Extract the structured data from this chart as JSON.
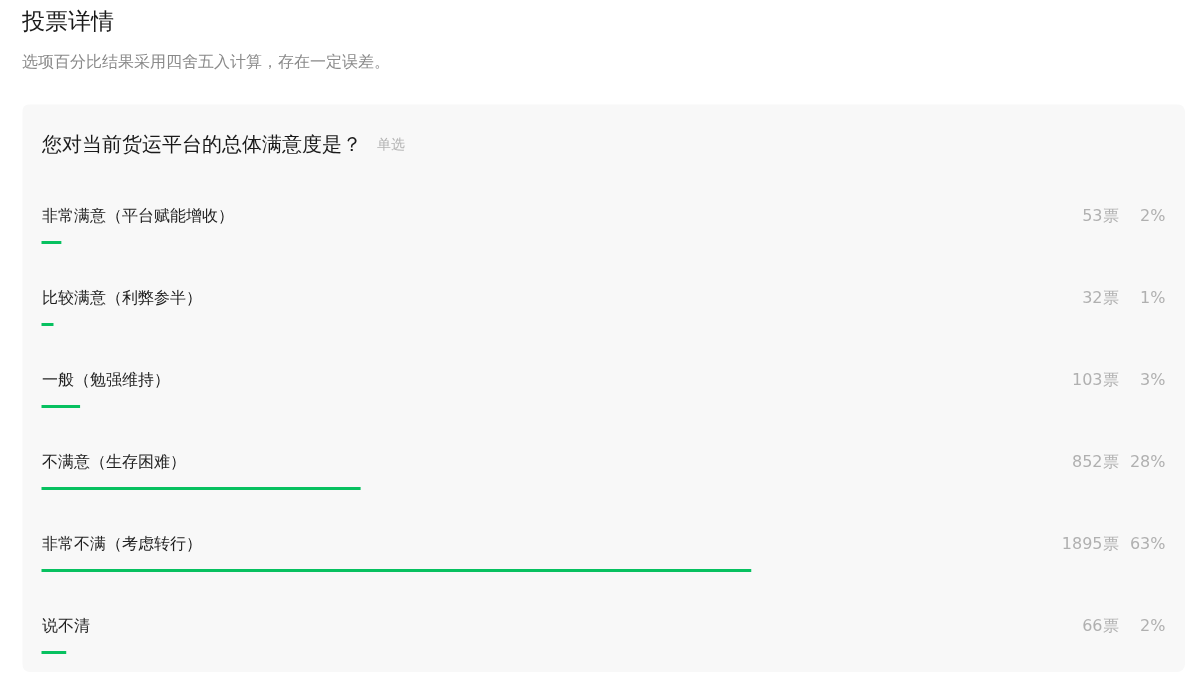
{
  "chart_data": {
    "type": "bar",
    "orientation": "horizontal",
    "title": "投票详情",
    "subtitle": "选项百分比结果采用四舍五入计算，存在一定误差。",
    "annotations": [
      "您对当前货运平台的总体满意度是？",
      "单选",
      "2%",
      "1%",
      "3%",
      "28%",
      "63%",
      "2%"
    ],
    "categories": [
      "非常满意（平台赋能增收）",
      "比较满意（利弊参半）",
      "一般（勉强维持）",
      "不满意（生存困难）",
      "非常不满（考虑转行）",
      "说不清"
    ],
    "values": [
      53,
      32,
      103,
      852,
      1895,
      66
    ],
    "value_labels": [
      "53票",
      "32票",
      "103票",
      "852票",
      "1895票",
      "66票"
    ],
    "tick_labels": false,
    "color": "#07c160"
  }
}
